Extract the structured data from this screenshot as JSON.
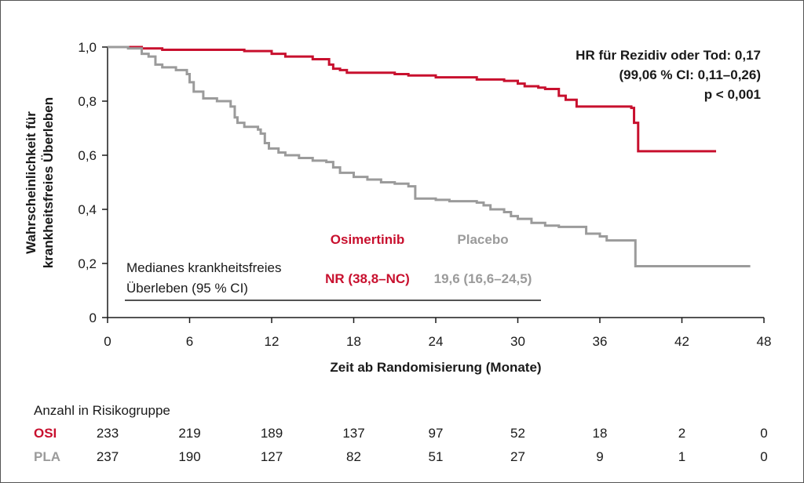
{
  "chart_data": {
    "type": "line",
    "xlabel": "Zeit ab Randomisierung (Monate)",
    "ylabel_line1": "Wahrscheinlichkeit für",
    "ylabel_line2": "krankheitsfreies Überleben",
    "xlim": [
      0,
      48
    ],
    "ylim": [
      0,
      1
    ],
    "x_ticks": [
      0,
      6,
      12,
      18,
      24,
      30,
      36,
      42,
      48
    ],
    "x_tick_labels": [
      "0",
      "6",
      "12",
      "18",
      "24",
      "30",
      "36",
      "42",
      "48"
    ],
    "y_ticks": [
      0,
      0.2,
      0.4,
      0.6,
      0.8,
      1.0
    ],
    "y_tick_labels": [
      "0",
      "0,2",
      "0,4",
      "0,6",
      "0,8",
      "1,0"
    ],
    "grid": false,
    "annotation": {
      "line1": "HR für Rezidiv oder Tod: 0,17",
      "line2": "(99,06 % CI: 0,11–0,26)",
      "line3": "p < 0,001"
    },
    "median_box": {
      "label_line1": "Medianes krankheitsfreies",
      "label_line2": "Überleben (95 % CI)",
      "osi_header": "Osimertinib",
      "pla_header": "Placebo",
      "osi_value": "NR (38,8–NC)",
      "pla_value": "19,6 (16,6–24,5)"
    },
    "series": [
      {
        "name": "Osimertinib",
        "color": "#c8102e",
        "points": [
          [
            0,
            1.0
          ],
          [
            2.5,
            0.995
          ],
          [
            4,
            0.99
          ],
          [
            10,
            0.985
          ],
          [
            12,
            0.975
          ],
          [
            13,
            0.965
          ],
          [
            15,
            0.955
          ],
          [
            16.2,
            0.935
          ],
          [
            16.5,
            0.92
          ],
          [
            17,
            0.915
          ],
          [
            17.5,
            0.905
          ],
          [
            21,
            0.9
          ],
          [
            22,
            0.895
          ],
          [
            24,
            0.888
          ],
          [
            27,
            0.88
          ],
          [
            29,
            0.875
          ],
          [
            30,
            0.865
          ],
          [
            30.5,
            0.855
          ],
          [
            31.5,
            0.85
          ],
          [
            32,
            0.845
          ],
          [
            33,
            0.82
          ],
          [
            33.5,
            0.805
          ],
          [
            34.3,
            0.78
          ],
          [
            38.3,
            0.775
          ],
          [
            38.5,
            0.72
          ],
          [
            38.8,
            0.615
          ],
          [
            44.5,
            0.615
          ]
        ]
      },
      {
        "name": "Placebo",
        "color": "#9b9b9b",
        "points": [
          [
            0,
            1.0
          ],
          [
            1.5,
            0.995
          ],
          [
            2.5,
            0.975
          ],
          [
            3,
            0.965
          ],
          [
            3.5,
            0.935
          ],
          [
            4,
            0.925
          ],
          [
            5,
            0.915
          ],
          [
            5.8,
            0.9
          ],
          [
            6,
            0.87
          ],
          [
            6.3,
            0.835
          ],
          [
            7,
            0.81
          ],
          [
            8,
            0.8
          ],
          [
            9,
            0.78
          ],
          [
            9.3,
            0.74
          ],
          [
            9.5,
            0.72
          ],
          [
            10,
            0.705
          ],
          [
            11,
            0.695
          ],
          [
            11.2,
            0.68
          ],
          [
            11.5,
            0.645
          ],
          [
            11.8,
            0.625
          ],
          [
            12.5,
            0.61
          ],
          [
            13,
            0.6
          ],
          [
            14,
            0.59
          ],
          [
            15,
            0.58
          ],
          [
            16,
            0.575
          ],
          [
            16.5,
            0.555
          ],
          [
            17,
            0.535
          ],
          [
            18,
            0.52
          ],
          [
            19,
            0.51
          ],
          [
            20,
            0.5
          ],
          [
            21,
            0.495
          ],
          [
            22,
            0.485
          ],
          [
            22.5,
            0.44
          ],
          [
            24,
            0.435
          ],
          [
            25,
            0.43
          ],
          [
            27,
            0.425
          ],
          [
            27.5,
            0.415
          ],
          [
            28,
            0.4
          ],
          [
            29,
            0.39
          ],
          [
            29.5,
            0.375
          ],
          [
            30,
            0.365
          ],
          [
            31,
            0.35
          ],
          [
            32,
            0.34
          ],
          [
            33,
            0.335
          ],
          [
            35,
            0.31
          ],
          [
            36,
            0.3
          ],
          [
            36.5,
            0.285
          ],
          [
            38.5,
            0.285
          ],
          [
            38.6,
            0.19
          ],
          [
            47,
            0.19
          ]
        ]
      }
    ],
    "risk_table": {
      "title": "Anzahl in Risikogruppe",
      "timepoints": [
        0,
        6,
        12,
        18,
        24,
        30,
        36,
        42,
        48
      ],
      "rows": [
        {
          "label": "OSI",
          "color": "#c8102e",
          "values": [
            "233",
            "219",
            "189",
            "137",
            "97",
            "52",
            "18",
            "2",
            "0"
          ]
        },
        {
          "label": "PLA",
          "color": "#9b9b9b",
          "values": [
            "237",
            "190",
            "127",
            "82",
            "51",
            "27",
            "9",
            "1",
            "0"
          ]
        }
      ]
    }
  }
}
